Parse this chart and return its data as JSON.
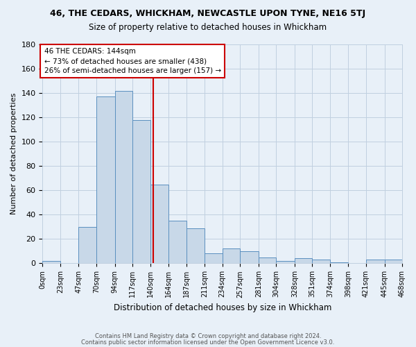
{
  "title": "46, THE CEDARS, WHICKHAM, NEWCASTLE UPON TYNE, NE16 5TJ",
  "subtitle": "Size of property relative to detached houses in Whickham",
  "xlabel": "Distribution of detached houses by size in Whickham",
  "ylabel": "Number of detached properties",
  "bar_color": "#c8d8e8",
  "bar_edge_color": "#5a8fbf",
  "grid_color": "#c0d0e0",
  "background_color": "#e8f0f8",
  "bin_edges": [
    0,
    23,
    47,
    70,
    94,
    117,
    140,
    164,
    187,
    211,
    234,
    257,
    281,
    304,
    328,
    351,
    374,
    398,
    421,
    445,
    468
  ],
  "bin_labels": [
    "0sqm",
    "23sqm",
    "47sqm",
    "70sqm",
    "94sqm",
    "117sqm",
    "140sqm",
    "164sqm",
    "187sqm",
    "211sqm",
    "234sqm",
    "257sqm",
    "281sqm",
    "304sqm",
    "328sqm",
    "351sqm",
    "374sqm",
    "398sqm",
    "421sqm",
    "445sqm",
    "468sqm"
  ],
  "counts": [
    2,
    0,
    30,
    137,
    142,
    118,
    65,
    35,
    29,
    8,
    12,
    10,
    5,
    2,
    4,
    3,
    1,
    0,
    3,
    3
  ],
  "vline_x": 144,
  "vline_color": "#cc0000",
  "annotation_title": "46 THE CEDARS: 144sqm",
  "annotation_line1": "← 73% of detached houses are smaller (438)",
  "annotation_line2": "26% of semi-detached houses are larger (157) →",
  "annotation_box_color": "#ffffff",
  "annotation_box_edge": "#cc0000",
  "ylim": [
    0,
    180
  ],
  "yticks": [
    0,
    20,
    40,
    60,
    80,
    100,
    120,
    140,
    160,
    180
  ],
  "footer1": "Contains HM Land Registry data © Crown copyright and database right 2024.",
  "footer2": "Contains public sector information licensed under the Open Government Licence v3.0."
}
